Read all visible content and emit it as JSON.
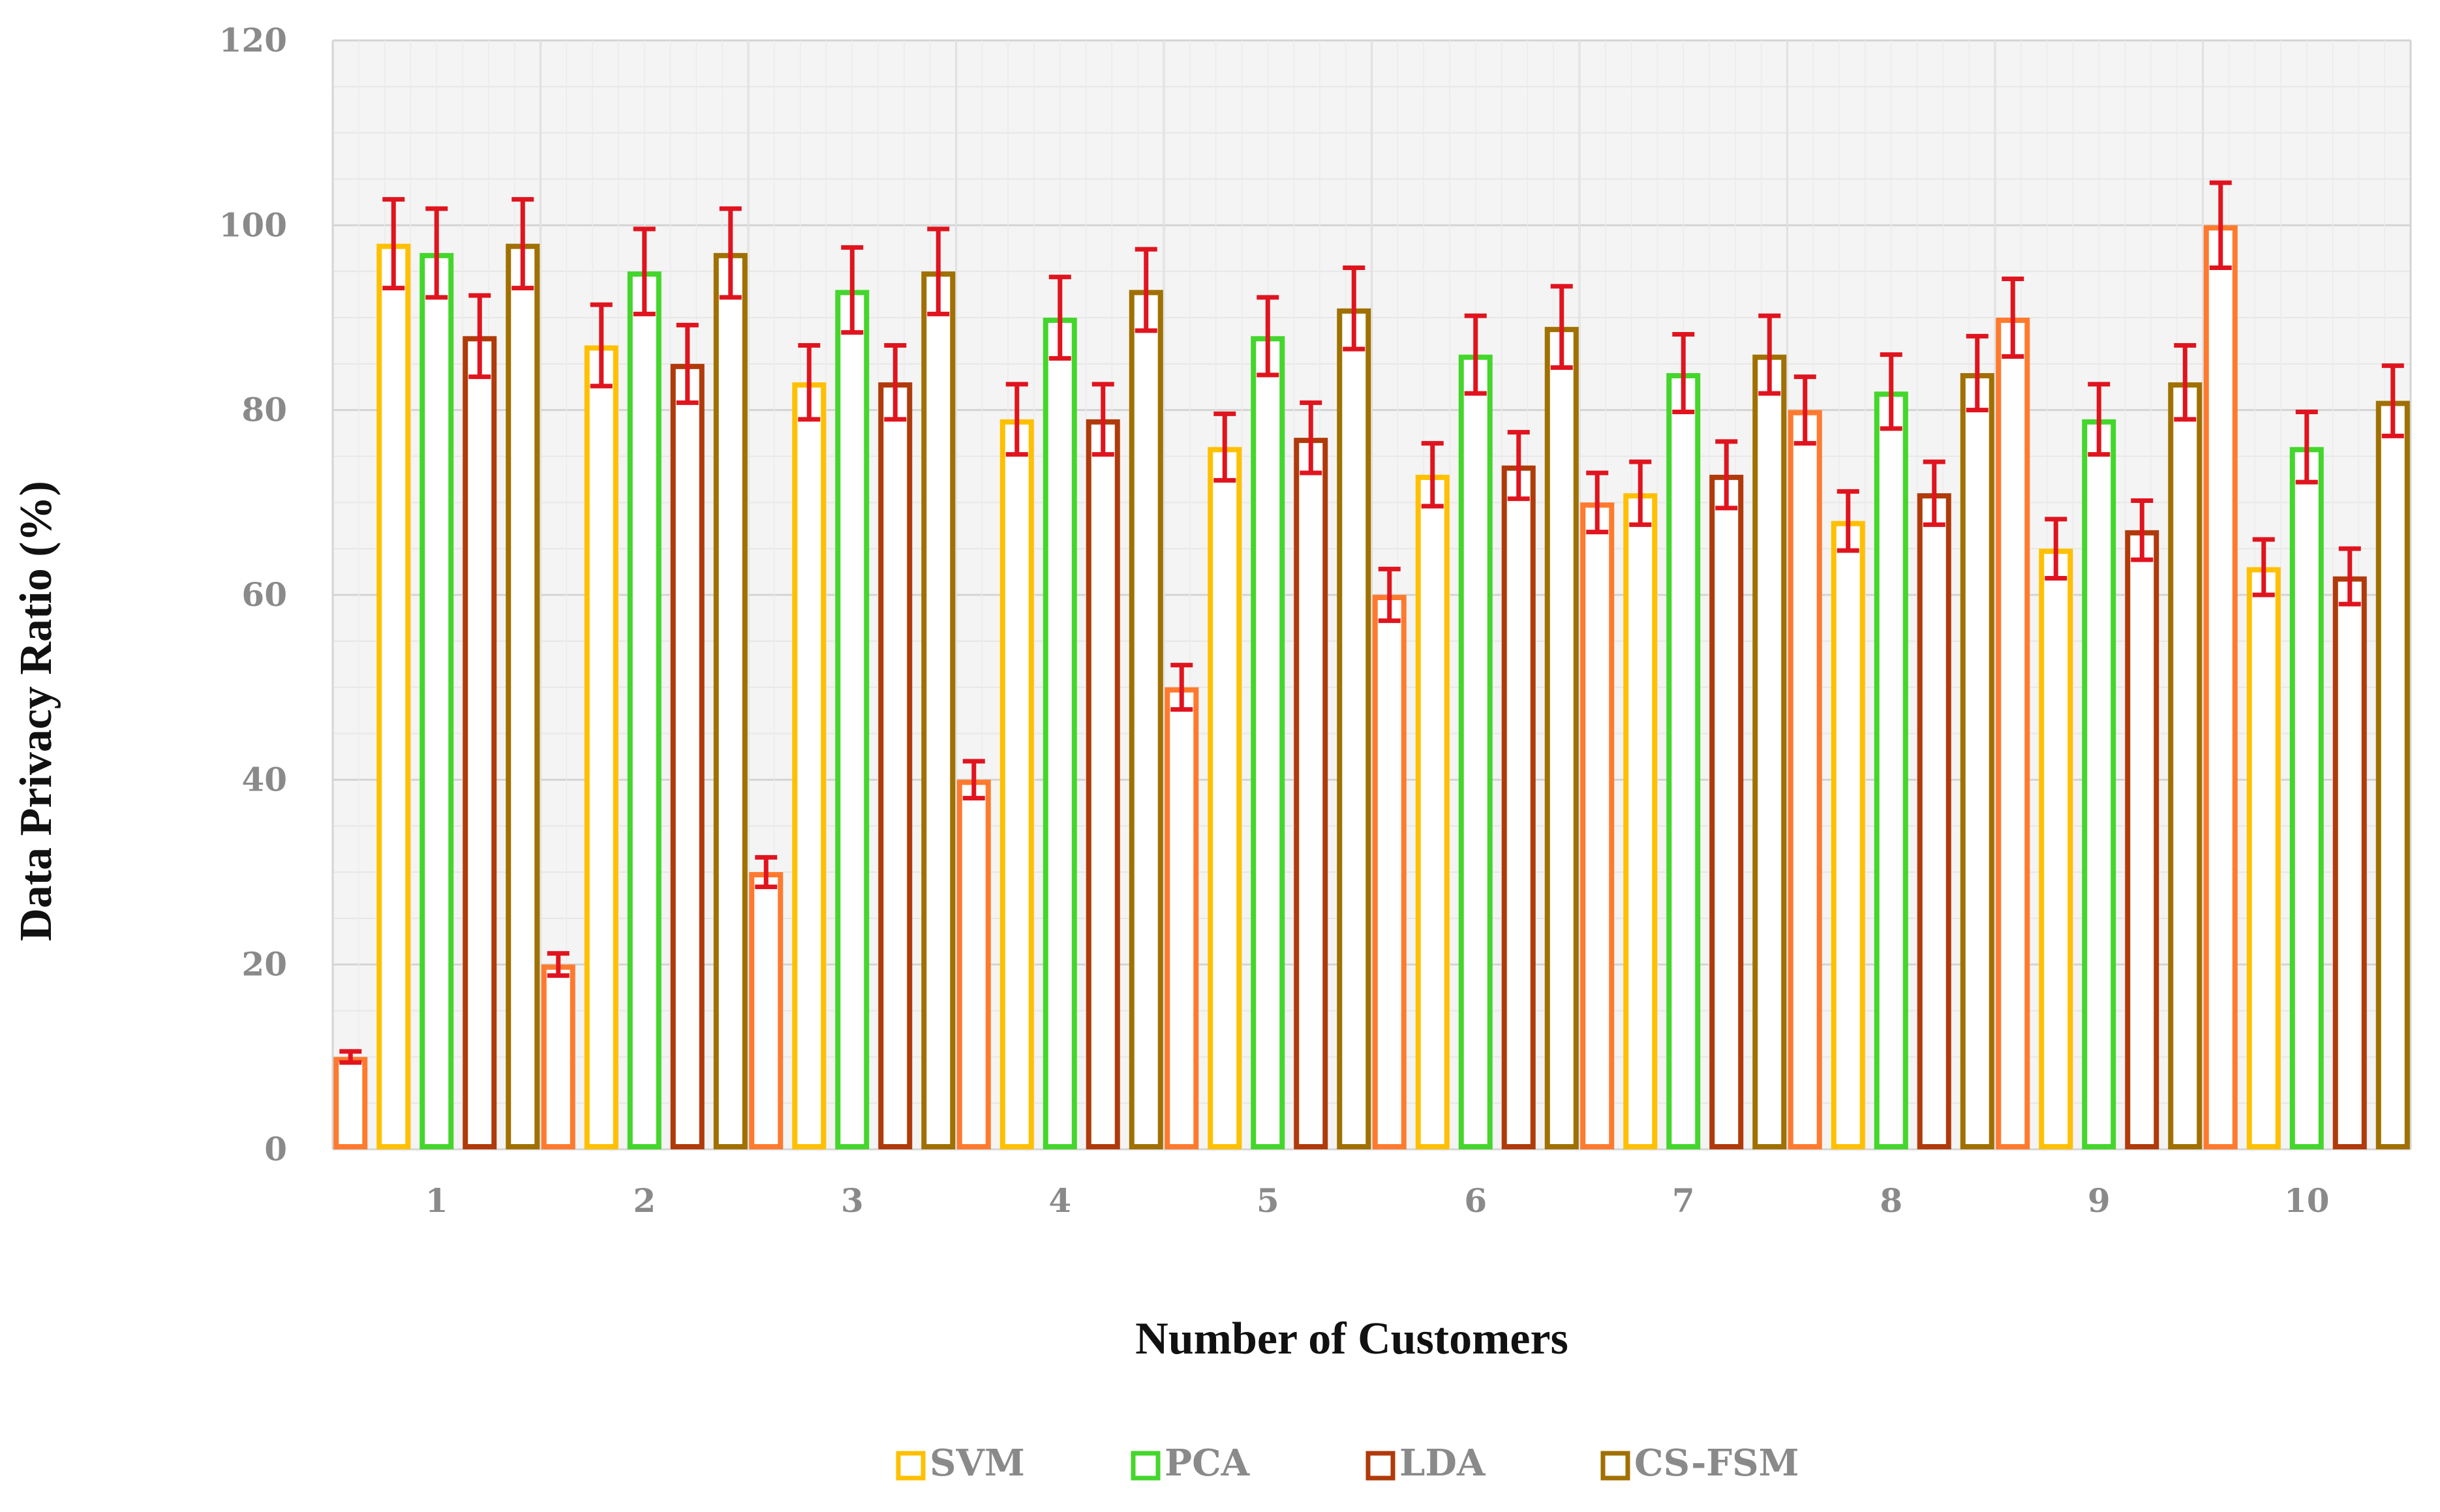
{
  "chart_data": {
    "type": "bar",
    "title": "",
    "xlabel": "Number of Customers",
    "ylabel": "Data Privacy Ratio (%)",
    "ylim": [
      0,
      120
    ],
    "yticks": [
      "0",
      "20",
      "40",
      "60",
      "80",
      "100",
      "120"
    ],
    "categories": [
      "1",
      "2",
      "3",
      "4",
      "5",
      "6",
      "7",
      "8",
      "9",
      "10"
    ],
    "grid": true,
    "legend_position": "bottom-center",
    "error_bar_color": "#e0141e",
    "series": [
      {
        "name": "",
        "color": "#ff7a2e",
        "in_legend": false,
        "values": [
          10,
          20,
          30,
          40,
          50,
          60,
          70,
          80,
          90,
          100
        ],
        "errors": [
          0.6,
          1.2,
          1.6,
          2.0,
          2.4,
          2.8,
          3.2,
          3.6,
          4.2,
          4.6
        ]
      },
      {
        "name": "SVM",
        "color": "#ffc000",
        "in_legend": true,
        "values": [
          98,
          87,
          83,
          79,
          76,
          73,
          71,
          68,
          65,
          63
        ],
        "errors": [
          4.8,
          4.4,
          4.0,
          3.8,
          3.6,
          3.4,
          3.4,
          3.2,
          3.2,
          3.0
        ]
      },
      {
        "name": "PCA",
        "color": "#44d62c",
        "in_legend": true,
        "values": [
          97,
          95,
          93,
          90,
          88,
          86,
          84,
          82,
          79,
          76
        ],
        "errors": [
          4.8,
          4.6,
          4.6,
          4.4,
          4.2,
          4.2,
          4.2,
          4.0,
          3.8,
          3.8
        ]
      },
      {
        "name": "LDA",
        "color": "#b03a0a",
        "in_legend": true,
        "values": [
          88,
          85,
          83,
          79,
          77,
          74,
          73,
          71,
          67,
          62
        ],
        "errors": [
          4.4,
          4.2,
          4.0,
          3.8,
          3.8,
          3.6,
          3.6,
          3.4,
          3.2,
          3.0
        ]
      },
      {
        "name": "CS-FSM",
        "color": "#a07000",
        "in_legend": true,
        "values": [
          98,
          97,
          95,
          93,
          91,
          89,
          86,
          84,
          83,
          81
        ],
        "errors": [
          4.8,
          4.8,
          4.6,
          4.4,
          4.4,
          4.4,
          4.2,
          4.0,
          4.0,
          3.8
        ]
      }
    ]
  }
}
